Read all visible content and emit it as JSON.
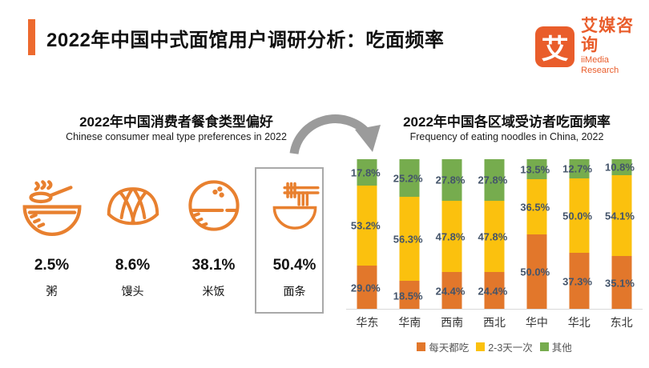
{
  "header": {
    "title": "2022年中国中式面馆用户调研分析：吃面频率",
    "logo": {
      "mark": "艾",
      "name_cn": "艾媒咨询",
      "name_en": "iiMedia Research",
      "color": "#E95D2B"
    }
  },
  "left_panel": {
    "title": "2022年中国消费者餐食类型偏好",
    "subtitle": "Chinese consumer meal type preferences in 2022",
    "items": [
      {
        "icon": "porridge-icon",
        "percent": "2.5%",
        "label": "粥",
        "highlighted": false
      },
      {
        "icon": "steamed-bun-icon",
        "percent": "8.6%",
        "label": "馒头",
        "highlighted": false
      },
      {
        "icon": "rice-icon",
        "percent": "38.1%",
        "label": "米饭",
        "highlighted": false
      },
      {
        "icon": "noodles-icon",
        "percent": "50.4%",
        "label": "面条",
        "highlighted": true
      }
    ]
  },
  "right_panel": {
    "title": "2022年中国各区域受访者吃面频率",
    "subtitle": "Frequency of eating noodles in China, 2022"
  },
  "chart_data": {
    "type": "bar",
    "stacked": true,
    "percent_stack": true,
    "categories": [
      "华东",
      "华南",
      "西南",
      "西北",
      "华中",
      "华北",
      "东北"
    ],
    "series": [
      {
        "name": "每天都吃",
        "color": "#E2772B",
        "values": [
          29.0,
          18.5,
          24.4,
          24.4,
          50.0,
          37.3,
          35.1
        ]
      },
      {
        "name": "2-3天一次",
        "color": "#FBC10E",
        "values": [
          53.2,
          56.3,
          47.8,
          47.8,
          36.5,
          50.0,
          54.1
        ]
      },
      {
        "name": "其他",
        "color": "#76AC4E",
        "values": [
          17.8,
          25.2,
          27.8,
          27.8,
          13.5,
          12.7,
          10.8
        ]
      }
    ],
    "value_suffix": "%",
    "ylim": [
      0,
      100
    ],
    "grid": false,
    "legend_position": "bottom",
    "label_color": "#44546A"
  },
  "colors": {
    "accent_orange": "#ED6A2F",
    "icon_orange": "#E8802F",
    "axis_line": "#D9D9D9",
    "highlight_border": "#A9A9A9",
    "arrow_gray": "#9B9B9B"
  }
}
